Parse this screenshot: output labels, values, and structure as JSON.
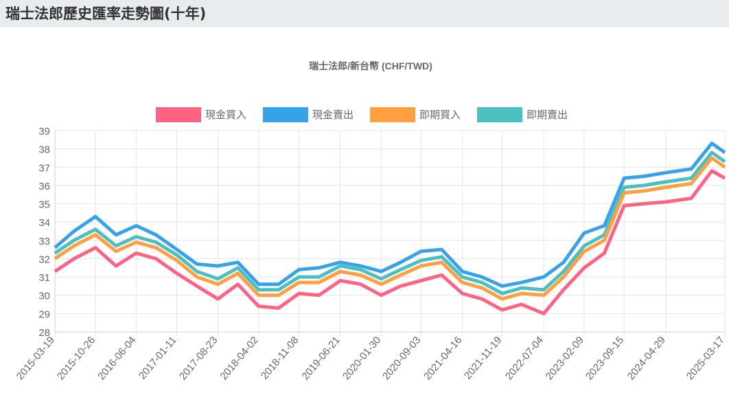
{
  "page": {
    "title": "瑞士法郎歷史匯率走勢圖(十年)"
  },
  "chart_data": {
    "type": "line",
    "title": "瑞士法郎/新台幣 (CHF/TWD)",
    "xlabel": "",
    "ylabel": "",
    "ylim": [
      28,
      39
    ],
    "yticks": [
      28,
      29,
      30,
      31,
      32,
      33,
      34,
      35,
      36,
      37,
      38,
      39
    ],
    "grid": true,
    "legend_position": "top",
    "x_tick_labels": [
      "2015-03-19",
      "2015-10-26",
      "2016-06-04",
      "2017-01-11",
      "2017-08-23",
      "2018-04-02",
      "2018-11-08",
      "2019-06-21",
      "2020-01-30",
      "2020-09-03",
      "2021-04-16",
      "2021-11-19",
      "2022-07-04",
      "2023-02-09",
      "2023-09-15",
      "2024-04-29",
      "2025-03-17"
    ],
    "x": [
      "2015-03-19",
      "2015-07-01",
      "2015-10-26",
      "2016-02-15",
      "2016-06-04",
      "2016-09-20",
      "2017-01-11",
      "2017-05-01",
      "2017-08-23",
      "2017-12-10",
      "2018-04-02",
      "2018-07-20",
      "2018-11-08",
      "2019-02-25",
      "2019-06-21",
      "2019-10-10",
      "2020-01-30",
      "2020-05-15",
      "2020-09-03",
      "2020-12-25",
      "2021-04-16",
      "2021-08-01",
      "2021-11-19",
      "2022-03-05",
      "2022-07-04",
      "2022-10-20",
      "2023-02-09",
      "2023-05-30",
      "2023-09-15",
      "2024-01-01",
      "2024-04-29",
      "2024-09-15",
      "2025-01-05",
      "2025-03-17"
    ],
    "series": [
      {
        "name": "現金買入",
        "color": "#ff6384",
        "values": [
          31.3,
          32.0,
          32.6,
          31.6,
          32.3,
          32.0,
          31.2,
          30.5,
          29.8,
          30.6,
          29.4,
          29.3,
          30.1,
          30.0,
          30.8,
          30.6,
          30.0,
          30.5,
          30.8,
          31.1,
          30.1,
          29.8,
          29.2,
          29.5,
          29.0,
          30.3,
          31.5,
          32.3,
          34.9,
          35.0,
          35.1,
          35.3,
          36.8,
          36.4
        ]
      },
      {
        "name": "現金賣出",
        "color": "#36a2eb",
        "values": [
          32.6,
          33.5,
          34.3,
          33.3,
          33.8,
          33.3,
          32.5,
          31.7,
          31.6,
          31.8,
          30.6,
          30.6,
          31.4,
          31.5,
          31.8,
          31.6,
          31.3,
          31.8,
          32.4,
          32.5,
          31.3,
          31.0,
          30.5,
          30.7,
          31.0,
          31.8,
          33.4,
          33.8,
          36.4,
          36.5,
          36.7,
          36.9,
          38.3,
          37.8
        ]
      },
      {
        "name": "即期買入",
        "color": "#ff9f40",
        "values": [
          32.0,
          32.7,
          33.3,
          32.4,
          32.9,
          32.6,
          31.9,
          31.0,
          30.6,
          31.2,
          30.0,
          30.0,
          30.7,
          30.7,
          31.3,
          31.1,
          30.6,
          31.1,
          31.6,
          31.8,
          30.7,
          30.4,
          29.8,
          30.1,
          30.0,
          31.0,
          32.4,
          33.0,
          35.6,
          35.7,
          35.9,
          36.1,
          37.5,
          37.0
        ]
      },
      {
        "name": "即期賣出",
        "color": "#4bc0c0",
        "values": [
          32.3,
          33.0,
          33.6,
          32.7,
          33.2,
          32.9,
          32.2,
          31.3,
          30.9,
          31.5,
          30.3,
          30.3,
          31.0,
          31.0,
          31.6,
          31.4,
          30.9,
          31.4,
          31.9,
          32.1,
          31.0,
          30.7,
          30.1,
          30.4,
          30.3,
          31.3,
          32.7,
          33.3,
          35.9,
          36.0,
          36.2,
          36.4,
          37.8,
          37.3
        ]
      }
    ]
  }
}
